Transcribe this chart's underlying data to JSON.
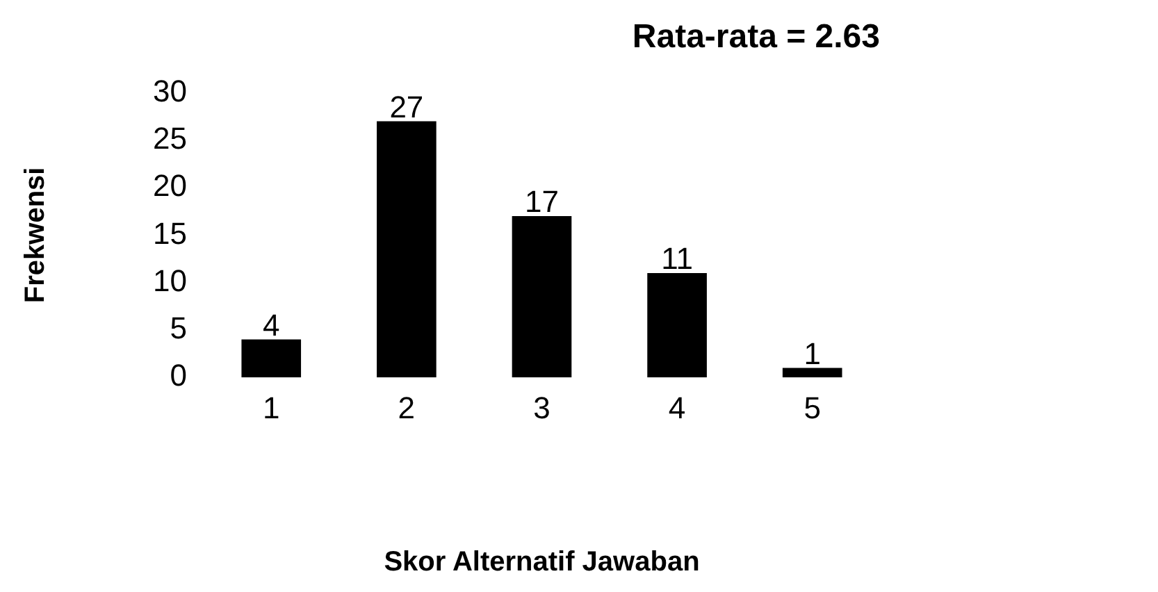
{
  "chart_data": {
    "type": "bar",
    "title": "Rata-rata = 2.63",
    "xlabel": "Skor Alternatif Jawaban",
    "ylabel": "Frekwensi",
    "categories": [
      "1",
      "2",
      "3",
      "4",
      "5"
    ],
    "values": [
      4,
      27,
      17,
      11,
      1
    ],
    "color": "#000000",
    "ylim": [
      0,
      30
    ],
    "yticks": [
      0,
      5,
      10,
      15,
      20,
      25,
      30
    ],
    "grid": false,
    "legend": false,
    "data_labels": true
  }
}
